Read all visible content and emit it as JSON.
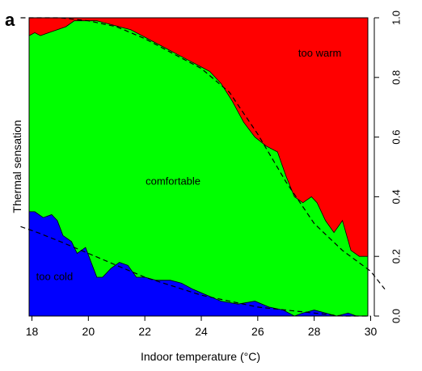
{
  "panel_label": "a",
  "chart_data": {
    "type": "area",
    "panel": "a",
    "xlabel": "Indoor temperature (°C)",
    "ylabel": "Thermal sensation",
    "xlim": [
      17.9,
      29.9
    ],
    "ylim": [
      0,
      1
    ],
    "x_ticks": [
      18,
      20,
      22,
      24,
      26,
      28,
      30
    ],
    "x_tick_labels": [
      "18",
      "20",
      "22",
      "24",
      "26",
      "28",
      "30"
    ],
    "y_ticks": [
      0.0,
      0.2,
      0.4,
      0.6,
      0.8,
      1.0
    ],
    "y_tick_labels": [
      "0.0",
      "0.2",
      "0.4",
      "0.6",
      "0.8",
      "1.0"
    ],
    "y_axis_side": "right",
    "grid": false,
    "stacked": true,
    "series": [
      {
        "name": "too cold",
        "color": "#0000ff",
        "label_pos": [
          18.8,
          0.12
        ]
      },
      {
        "name": "comfortable",
        "color": "#00ff00",
        "label_pos": [
          23.0,
          0.44
        ]
      },
      {
        "name": "too warm",
        "color": "#ff0000",
        "label_pos": [
          28.2,
          0.87
        ]
      }
    ],
    "boundary_cold": [
      [
        17.9,
        0.35
      ],
      [
        18.1,
        0.35
      ],
      [
        18.4,
        0.33
      ],
      [
        18.7,
        0.34
      ],
      [
        18.9,
        0.32
      ],
      [
        19.1,
        0.27
      ],
      [
        19.4,
        0.25
      ],
      [
        19.6,
        0.21
      ],
      [
        19.9,
        0.23
      ],
      [
        20.1,
        0.18
      ],
      [
        20.3,
        0.13
      ],
      [
        20.5,
        0.13
      ],
      [
        20.8,
        0.16
      ],
      [
        21.1,
        0.18
      ],
      [
        21.4,
        0.17
      ],
      [
        21.7,
        0.13
      ],
      [
        22.0,
        0.13
      ],
      [
        22.4,
        0.12
      ],
      [
        22.9,
        0.12
      ],
      [
        23.3,
        0.11
      ],
      [
        23.7,
        0.09
      ],
      [
        24.2,
        0.07
      ],
      [
        24.7,
        0.05
      ],
      [
        25.3,
        0.04
      ],
      [
        25.9,
        0.05
      ],
      [
        26.4,
        0.03
      ],
      [
        26.9,
        0.02
      ],
      [
        27.3,
        0.0
      ],
      [
        27.6,
        0.01
      ],
      [
        28.0,
        0.02
      ],
      [
        28.4,
        0.01
      ],
      [
        28.8,
        0.0
      ],
      [
        29.2,
        0.01
      ],
      [
        29.5,
        0.0
      ],
      [
        29.9,
        0.0
      ]
    ],
    "boundary_warm": [
      [
        17.9,
        0.94
      ],
      [
        18.1,
        0.95
      ],
      [
        18.3,
        0.94
      ],
      [
        18.6,
        0.95
      ],
      [
        18.9,
        0.96
      ],
      [
        19.2,
        0.97
      ],
      [
        19.5,
        0.99
      ],
      [
        19.9,
        0.99
      ],
      [
        20.3,
        0.99
      ],
      [
        20.7,
        0.98
      ],
      [
        21.1,
        0.97
      ],
      [
        21.5,
        0.96
      ],
      [
        21.9,
        0.94
      ],
      [
        22.3,
        0.92
      ],
      [
        22.7,
        0.9
      ],
      [
        23.1,
        0.88
      ],
      [
        23.5,
        0.86
      ],
      [
        23.9,
        0.84
      ],
      [
        24.3,
        0.82
      ],
      [
        24.7,
        0.78
      ],
      [
        25.1,
        0.72
      ],
      [
        25.5,
        0.65
      ],
      [
        25.9,
        0.6
      ],
      [
        26.3,
        0.57
      ],
      [
        26.7,
        0.55
      ],
      [
        27.0,
        0.47
      ],
      [
        27.3,
        0.4
      ],
      [
        27.6,
        0.38
      ],
      [
        27.9,
        0.4
      ],
      [
        28.1,
        0.38
      ],
      [
        28.4,
        0.32
      ],
      [
        28.7,
        0.28
      ],
      [
        29.0,
        0.32
      ],
      [
        29.3,
        0.22
      ],
      [
        29.6,
        0.2
      ],
      [
        29.9,
        0.2
      ]
    ],
    "fitted_curves": {
      "style": "dashed",
      "cold_fit": [
        [
          17.6,
          0.3
        ],
        [
          18.2,
          0.28
        ],
        [
          19.0,
          0.25
        ],
        [
          20.0,
          0.21
        ],
        [
          21.0,
          0.17
        ],
        [
          22.0,
          0.13
        ],
        [
          23.0,
          0.1
        ],
        [
          24.0,
          0.07
        ],
        [
          25.0,
          0.05
        ],
        [
          26.0,
          0.03
        ],
        [
          27.0,
          0.02
        ],
        [
          28.0,
          0.01
        ],
        [
          29.0,
          0.0
        ],
        [
          30.0,
          0.0
        ]
      ],
      "warm_fit": [
        [
          17.6,
          1.0
        ],
        [
          19.0,
          1.0
        ],
        [
          20.0,
          0.99
        ],
        [
          21.0,
          0.97
        ],
        [
          22.0,
          0.93
        ],
        [
          23.0,
          0.88
        ],
        [
          24.0,
          0.83
        ],
        [
          25.0,
          0.75
        ],
        [
          26.0,
          0.61
        ],
        [
          27.0,
          0.45
        ],
        [
          28.0,
          0.31
        ],
        [
          29.0,
          0.22
        ],
        [
          30.0,
          0.15
        ],
        [
          30.5,
          0.09
        ]
      ]
    }
  }
}
